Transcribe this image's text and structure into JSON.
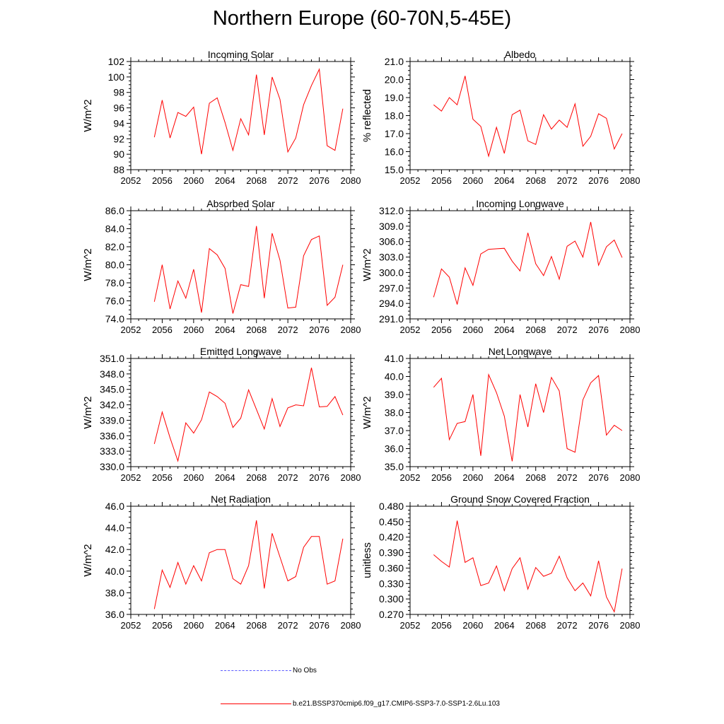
{
  "page": {
    "title": "Northern Europe (60-70N,5-45E)"
  },
  "colors": {
    "series": "#ff0000",
    "obs": "#5a5aff",
    "axis": "#000000"
  },
  "legend": {
    "obs_label": "No Obs",
    "model_label": "b.e21.BSSP370cmip6.f09_g17.CMIP6-SSP3-7.0-SSP1-2.6Lu.103"
  },
  "chart_data": [
    {
      "id": "incoming-solar",
      "type": "line",
      "title": "Incoming Solar",
      "ylabel": "W/m^2",
      "xlabel": "",
      "xlim": [
        2052,
        2080
      ],
      "ylim": [
        88,
        102
      ],
      "xticks": [
        2052,
        2056,
        2060,
        2064,
        2068,
        2072,
        2076,
        2080
      ],
      "xtick_labels": [
        "2052",
        "2056",
        "2060",
        "2064",
        "2068",
        "2072",
        "2076",
        "2080"
      ],
      "yticks": [
        88,
        90,
        92,
        94,
        96,
        98,
        100,
        102
      ],
      "ytick_labels": [
        "88",
        "90",
        "92",
        "94",
        "96",
        "98",
        "100",
        "102"
      ],
      "series": [
        {
          "name": "b.e21.BSSP370cmip6.f09_g17.CMIP6-SSP3-7.0-SSP1-2.6Lu.103",
          "x": [
            2055,
            2056,
            2057,
            2058,
            2059,
            2060,
            2061,
            2062,
            2063,
            2064,
            2065,
            2066,
            2067,
            2068,
            2069,
            2070,
            2071,
            2072,
            2073,
            2074,
            2075,
            2076,
            2077,
            2078,
            2079
          ],
          "values": [
            92.2,
            97.0,
            92.1,
            95.4,
            94.9,
            96.1,
            90.0,
            96.6,
            97.3,
            94.1,
            90.5,
            94.6,
            92.5,
            100.3,
            92.5,
            100.0,
            97.1,
            90.3,
            92.1,
            96.4,
            98.9,
            101.0,
            91.1,
            90.5,
            95.9
          ]
        }
      ]
    },
    {
      "id": "albedo",
      "type": "line",
      "title": "Albedo",
      "ylabel": "% reflected",
      "xlabel": "",
      "xlim": [
        2052,
        2080
      ],
      "ylim": [
        15.0,
        21.0
      ],
      "xticks": [
        2052,
        2056,
        2060,
        2064,
        2068,
        2072,
        2076,
        2080
      ],
      "xtick_labels": [
        "2052",
        "2056",
        "2060",
        "2064",
        "2068",
        "2072",
        "2076",
        "2080"
      ],
      "yticks": [
        15,
        16,
        17,
        18,
        19,
        20,
        21
      ],
      "ytick_labels": [
        "15.0",
        "16.0",
        "17.0",
        "18.0",
        "19.0",
        "20.0",
        "21.0"
      ],
      "series": [
        {
          "name": "b.e21.BSSP370cmip6.f09_g17.CMIP6-SSP3-7.0-SSP1-2.6Lu.103",
          "x": [
            2055,
            2056,
            2057,
            2058,
            2059,
            2060,
            2061,
            2062,
            2063,
            2064,
            2065,
            2066,
            2067,
            2068,
            2069,
            2070,
            2071,
            2072,
            2073,
            2074,
            2075,
            2076,
            2077,
            2078,
            2079
          ],
          "values": [
            18.6,
            18.25,
            19.0,
            18.6,
            20.2,
            17.8,
            17.4,
            15.75,
            17.35,
            15.9,
            18.05,
            18.3,
            16.6,
            16.4,
            18.05,
            17.25,
            17.75,
            17.35,
            18.65,
            16.3,
            16.85,
            18.1,
            17.85,
            16.15,
            17.0
          ]
        }
      ]
    },
    {
      "id": "absorbed-solar",
      "type": "line",
      "title": "Absorbed Solar",
      "ylabel": "W/m^2",
      "xlabel": "",
      "xlim": [
        2052,
        2080
      ],
      "ylim": [
        74.0,
        86.0
      ],
      "xticks": [
        2052,
        2056,
        2060,
        2064,
        2068,
        2072,
        2076,
        2080
      ],
      "xtick_labels": [
        "2052",
        "2056",
        "2060",
        "2064",
        "2068",
        "2072",
        "2076",
        "2080"
      ],
      "yticks": [
        74,
        76,
        78,
        80,
        82,
        84,
        86
      ],
      "ytick_labels": [
        "74.0",
        "76.0",
        "78.0",
        "80.0",
        "82.0",
        "84.0",
        "86.0"
      ],
      "series": [
        {
          "name": "b.e21.BSSP370cmip6.f09_g17.CMIP6-SSP3-7.0-SSP1-2.6Lu.103",
          "x": [
            2055,
            2056,
            2057,
            2058,
            2059,
            2060,
            2061,
            2062,
            2063,
            2064,
            2065,
            2066,
            2067,
            2068,
            2069,
            2070,
            2071,
            2072,
            2073,
            2074,
            2075,
            2076,
            2077,
            2078,
            2079
          ],
          "values": [
            75.9,
            80.0,
            75.1,
            78.2,
            76.3,
            79.5,
            74.7,
            81.8,
            81.1,
            79.6,
            74.6,
            77.8,
            77.6,
            84.3,
            76.3,
            83.5,
            80.5,
            75.2,
            75.3,
            81.0,
            82.8,
            83.2,
            75.5,
            76.4,
            80.0
          ]
        }
      ]
    },
    {
      "id": "incoming-longwave",
      "type": "line",
      "title": "Incoming Longwave",
      "ylabel": "W/m^2",
      "xlabel": "",
      "xlim": [
        2052,
        2080
      ],
      "ylim": [
        291.0,
        312.0
      ],
      "xticks": [
        2052,
        2056,
        2060,
        2064,
        2068,
        2072,
        2076,
        2080
      ],
      "xtick_labels": [
        "2052",
        "2056",
        "2060",
        "2064",
        "2068",
        "2072",
        "2076",
        "2080"
      ],
      "yticks": [
        291,
        294,
        297,
        300,
        303,
        306,
        309,
        312
      ],
      "ytick_labels": [
        "291.0",
        "294.0",
        "297.0",
        "300.0",
        "303.0",
        "306.0",
        "309.0",
        "312.0"
      ],
      "series": [
        {
          "name": "b.e21.BSSP370cmip6.f09_g17.CMIP6-SSP3-7.0-SSP1-2.6Lu.103",
          "x": [
            2055,
            2056,
            2057,
            2058,
            2059,
            2060,
            2061,
            2062,
            2063,
            2064,
            2065,
            2066,
            2067,
            2068,
            2069,
            2070,
            2071,
            2072,
            2073,
            2074,
            2075,
            2076,
            2077,
            2078,
            2079
          ],
          "values": [
            295.2,
            300.7,
            299.1,
            293.8,
            300.9,
            297.5,
            303.6,
            304.5,
            304.6,
            304.7,
            302.2,
            300.3,
            307.7,
            301.7,
            299.4,
            303.1,
            298.7,
            305.1,
            306.1,
            303.0,
            309.8,
            301.4,
            305.0,
            306.3,
            302.9
          ]
        }
      ]
    },
    {
      "id": "emitted-longwave",
      "type": "line",
      "title": "Emitted Longwave",
      "ylabel": "W/m^2",
      "xlabel": "",
      "xlim": [
        2052,
        2080
      ],
      "ylim": [
        330.0,
        351.0
      ],
      "xticks": [
        2052,
        2056,
        2060,
        2064,
        2068,
        2072,
        2076,
        2080
      ],
      "xtick_labels": [
        "2052",
        "2056",
        "2060",
        "2064",
        "2068",
        "2072",
        "2076",
        "2080"
      ],
      "yticks": [
        330,
        333,
        336,
        339,
        342,
        345,
        348,
        351
      ],
      "ytick_labels": [
        "330.0",
        "333.0",
        "336.0",
        "339.0",
        "342.0",
        "345.0",
        "348.0",
        "351.0"
      ],
      "series": [
        {
          "name": "b.e21.BSSP370cmip6.f09_g17.CMIP6-SSP3-7.0-SSP1-2.6Lu.103",
          "x": [
            2055,
            2056,
            2057,
            2058,
            2059,
            2060,
            2061,
            2062,
            2063,
            2064,
            2065,
            2066,
            2067,
            2068,
            2069,
            2070,
            2071,
            2072,
            2073,
            2074,
            2075,
            2076,
            2077,
            2078,
            2079
          ],
          "values": [
            334.4,
            340.6,
            335.6,
            331.1,
            338.5,
            336.5,
            339.1,
            344.5,
            343.6,
            342.3,
            337.6,
            339.4,
            344.9,
            341.1,
            337.3,
            343.2,
            337.8,
            341.4,
            342.0,
            341.8,
            349.2,
            341.6,
            341.7,
            343.6,
            340.0
          ]
        }
      ]
    },
    {
      "id": "net-longwave",
      "type": "line",
      "title": "Net Longwave",
      "ylabel": "W/m^2",
      "xlabel": "",
      "xlim": [
        2052,
        2080
      ],
      "ylim": [
        35.0,
        41.0
      ],
      "xticks": [
        2052,
        2056,
        2060,
        2064,
        2068,
        2072,
        2076,
        2080
      ],
      "xtick_labels": [
        "2052",
        "2056",
        "2060",
        "2064",
        "2068",
        "2072",
        "2076",
        "2080"
      ],
      "yticks": [
        35,
        36,
        37,
        38,
        39,
        40,
        41
      ],
      "ytick_labels": [
        "35.0",
        "36.0",
        "37.0",
        "38.0",
        "39.0",
        "40.0",
        "41.0"
      ],
      "series": [
        {
          "name": "b.e21.BSSP370cmip6.f09_g17.CMIP6-SSP3-7.0-SSP1-2.6Lu.103",
          "x": [
            2055,
            2056,
            2057,
            2058,
            2059,
            2060,
            2061,
            2062,
            2063,
            2064,
            2065,
            2066,
            2067,
            2068,
            2069,
            2070,
            2071,
            2072,
            2073,
            2074,
            2075,
            2076,
            2077,
            2078,
            2079
          ],
          "values": [
            39.4,
            39.9,
            36.5,
            37.4,
            37.5,
            39.0,
            35.6,
            40.1,
            39.1,
            37.8,
            35.3,
            39.0,
            37.2,
            39.6,
            38.0,
            39.95,
            39.2,
            36.0,
            35.8,
            38.7,
            39.65,
            40.05,
            36.75,
            37.3,
            37.0
          ]
        }
      ]
    },
    {
      "id": "net-radiation",
      "type": "line",
      "title": "Net Radiation",
      "ylabel": "W/m^2",
      "xlabel": "",
      "xlim": [
        2052,
        2080
      ],
      "ylim": [
        36.0,
        46.0
      ],
      "xticks": [
        2052,
        2056,
        2060,
        2064,
        2068,
        2072,
        2076,
        2080
      ],
      "xtick_labels": [
        "2052",
        "2056",
        "2060",
        "2064",
        "2068",
        "2072",
        "2076",
        "2080"
      ],
      "yticks": [
        36,
        38,
        40,
        42,
        44,
        46
      ],
      "ytick_labels": [
        "36.0",
        "38.0",
        "40.0",
        "42.0",
        "44.0",
        "46.0"
      ],
      "series": [
        {
          "name": "b.e21.BSSP370cmip6.f09_g17.CMIP6-SSP3-7.0-SSP1-2.6Lu.103",
          "x": [
            2055,
            2056,
            2057,
            2058,
            2059,
            2060,
            2061,
            2062,
            2063,
            2064,
            2065,
            2066,
            2067,
            2068,
            2069,
            2070,
            2071,
            2072,
            2073,
            2074,
            2075,
            2076,
            2077,
            2078,
            2079
          ],
          "values": [
            36.5,
            40.1,
            38.5,
            40.8,
            38.8,
            40.5,
            39.1,
            41.7,
            42.0,
            42.0,
            39.3,
            38.8,
            40.5,
            44.7,
            38.4,
            43.5,
            41.3,
            39.1,
            39.5,
            42.2,
            43.2,
            43.2,
            38.8,
            39.1,
            43.0
          ]
        }
      ]
    },
    {
      "id": "ground-snow-covered-fraction",
      "type": "line",
      "title": "Ground Snow Covered Fraction",
      "ylabel": "unitless",
      "xlabel": "",
      "xlim": [
        2052,
        2080
      ],
      "ylim": [
        0.27,
        0.48
      ],
      "xticks": [
        2052,
        2056,
        2060,
        2064,
        2068,
        2072,
        2076,
        2080
      ],
      "xtick_labels": [
        "2052",
        "2056",
        "2060",
        "2064",
        "2068",
        "2072",
        "2076",
        "2080"
      ],
      "yticks": [
        0.27,
        0.3,
        0.33,
        0.36,
        0.39,
        0.42,
        0.45,
        0.48
      ],
      "ytick_labels": [
        "0.270",
        "0.300",
        "0.330",
        "0.360",
        "0.390",
        "0.420",
        "0.450",
        "0.480"
      ],
      "series": [
        {
          "name": "b.e21.BSSP370cmip6.f09_g17.CMIP6-SSP3-7.0-SSP1-2.6Lu.103",
          "x": [
            2055,
            2056,
            2057,
            2058,
            2059,
            2060,
            2061,
            2062,
            2063,
            2064,
            2065,
            2066,
            2067,
            2068,
            2069,
            2070,
            2071,
            2072,
            2073,
            2074,
            2075,
            2076,
            2077,
            2078,
            2079
          ],
          "values": [
            0.386,
            0.373,
            0.362,
            0.452,
            0.371,
            0.38,
            0.326,
            0.331,
            0.364,
            0.316,
            0.359,
            0.38,
            0.319,
            0.361,
            0.344,
            0.35,
            0.383,
            0.341,
            0.316,
            0.331,
            0.306,
            0.374,
            0.304,
            0.275,
            0.359
          ]
        }
      ]
    }
  ]
}
